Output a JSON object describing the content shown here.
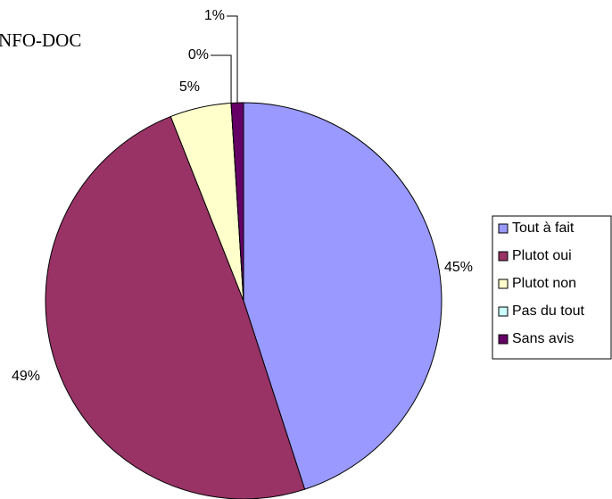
{
  "chart_data": {
    "type": "pie",
    "title": "NFO-DOC",
    "categories": [
      "Tout à fait",
      "Plutot oui",
      "Plutot non",
      "Pas du tout",
      "Sans avis"
    ],
    "values": [
      45,
      49,
      5,
      0,
      1
    ],
    "value_labels": [
      "45%",
      "49%",
      "5%",
      "0%",
      "1%"
    ],
    "colors": [
      "#9999ff",
      "#993366",
      "#ffffcc",
      "#ccffff",
      "#660066"
    ],
    "legend": "right"
  }
}
